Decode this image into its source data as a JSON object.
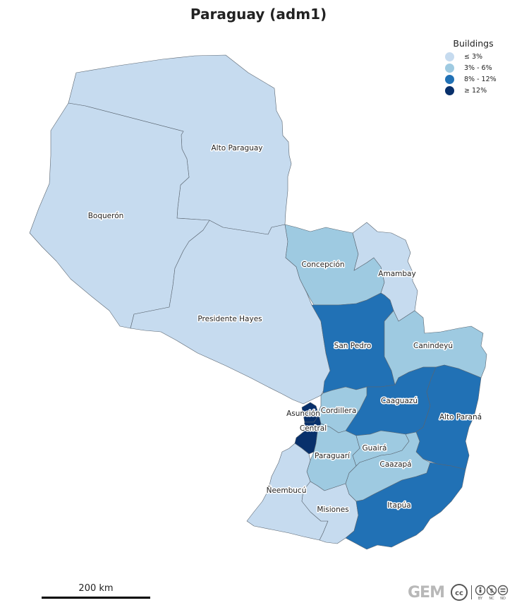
{
  "title": "Paraguay (adm1)",
  "colors": {
    "class1": "#c6dbef",
    "class2": "#9ecae1",
    "class3": "#2171b5",
    "class4": "#08306b"
  },
  "legend": {
    "title": "Buildings",
    "items": [
      {
        "label": "≤ 3%",
        "color": "#c6dbef"
      },
      {
        "label": "3% - 6%",
        "color": "#9ecae1"
      },
      {
        "label": "8% - 12%",
        "color": "#2171b5"
      },
      {
        "label": "≥ 12%",
        "color": "#08306b"
      }
    ]
  },
  "regions": {
    "alto_paraguay": {
      "name": "Alto Paraguay",
      "class": "≤ 3%"
    },
    "boqueron": {
      "name": "Boquerón",
      "class": "≤ 3%"
    },
    "presidente_hayes": {
      "name": "Presidente Hayes",
      "class": "≤ 3%"
    },
    "concepcion": {
      "name": "Concepción",
      "class": "3% - 6%"
    },
    "amambay": {
      "name": "Amambay",
      "class": "≤ 3%"
    },
    "san_pedro": {
      "name": "San Pedro",
      "class": "8% - 12%"
    },
    "canindeyu": {
      "name": "Canindeyú",
      "class": "3% - 6%"
    },
    "caaguazu": {
      "name": "Caaguazú",
      "class": "8% - 12%"
    },
    "alto_parana": {
      "name": "Alto Paraná",
      "class": "8% - 12%"
    },
    "asuncion": {
      "name": "Asunción",
      "class": "≥ 12%"
    },
    "cordillera": {
      "name": "Cordillera",
      "class": "3% - 6%"
    },
    "central": {
      "name": "Central",
      "class": "≥ 12%"
    },
    "paraguari": {
      "name": "Paraguarí",
      "class": "3% - 6%"
    },
    "guaira": {
      "name": "Guairá",
      "class": "3% - 6%"
    },
    "caazapa": {
      "name": "Caazapá",
      "class": "3% - 6%"
    },
    "neembucu": {
      "name": "Ñeembucú",
      "class": "≤ 3%"
    },
    "misiones": {
      "name": "Misiones",
      "class": "≤ 3%"
    },
    "itapua": {
      "name": "Itapúa",
      "class": "8% - 12%"
    }
  },
  "scalebar": {
    "label": "200 km"
  },
  "footer": {
    "logo_text": "GEM",
    "license": "CC BY-NC-ND",
    "license_icons": [
      "cc-icon",
      "by-icon",
      "nc-icon",
      "nd-icon"
    ]
  }
}
